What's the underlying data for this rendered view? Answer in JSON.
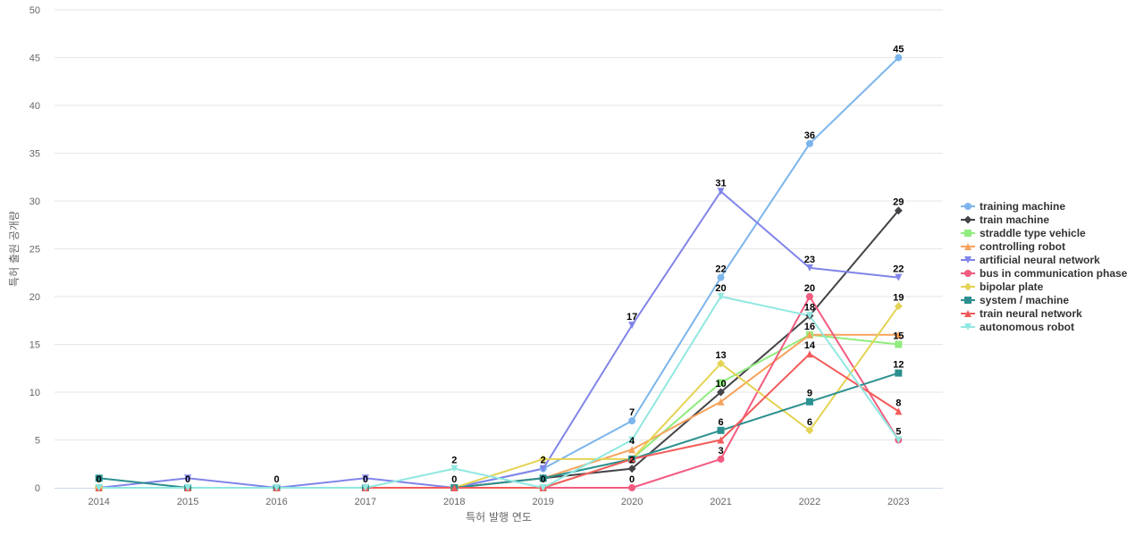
{
  "chart_data": {
    "type": "line",
    "title": "",
    "xlabel": "특허 발행 연도",
    "ylabel": "특허 출원 공개량",
    "ylim": [
      0,
      50
    ],
    "yticks": [
      0,
      5,
      10,
      15,
      20,
      25,
      30,
      35,
      40,
      45,
      50
    ],
    "categories": [
      "2014",
      "2015",
      "2016",
      "2017",
      "2018",
      "2019",
      "2020",
      "2021",
      "2022",
      "2023"
    ],
    "grid": true,
    "legend_position": "right",
    "series": [
      {
        "name": "training machine",
        "color": "#7cb5ec",
        "marker": "circle",
        "values": [
          0,
          0,
          0,
          0,
          0,
          2,
          7,
          22,
          36,
          45
        ]
      },
      {
        "name": "train machine",
        "color": "#434348",
        "marker": "diamond",
        "values": [
          0,
          0,
          0,
          0,
          0,
          1,
          2,
          10,
          18,
          29
        ]
      },
      {
        "name": "straddle type vehicle",
        "color": "#90ed7d",
        "marker": "square",
        "values": [
          0,
          0,
          0,
          0,
          0,
          0,
          3,
          11,
          16,
          15
        ]
      },
      {
        "name": "controlling robot",
        "color": "#f7a35c",
        "marker": "triangle",
        "values": [
          0,
          0,
          0,
          0,
          0,
          1,
          4,
          9,
          16,
          16
        ]
      },
      {
        "name": "artificial neural network",
        "color": "#8085e9",
        "marker": "triangle-down",
        "values": [
          0,
          1,
          0,
          1,
          0,
          2,
          17,
          31,
          23,
          22
        ]
      },
      {
        "name": "bus in communication phase",
        "color": "#f15c80",
        "marker": "circle",
        "values": [
          0,
          0,
          0,
          0,
          0,
          0,
          0,
          3,
          20,
          5
        ]
      },
      {
        "name": "bipolar plate",
        "color": "#e4d354",
        "marker": "diamond",
        "values": [
          0,
          0,
          0,
          0,
          0,
          3,
          3,
          13,
          6,
          19
        ]
      },
      {
        "name": "system / machine",
        "color": "#2b908f",
        "marker": "square",
        "values": [
          1,
          0,
          0,
          0,
          0,
          1,
          3,
          6,
          9,
          12
        ]
      },
      {
        "name": "train neural network",
        "color": "#f45b5b",
        "marker": "triangle",
        "values": [
          0,
          0,
          0,
          0,
          0,
          0,
          3,
          5,
          14,
          8
        ]
      },
      {
        "name": "autonomous robot",
        "color": "#91e8e1",
        "marker": "triangle-down",
        "values": [
          0,
          0,
          0,
          0,
          2,
          0,
          5,
          20,
          18,
          5
        ]
      }
    ],
    "data_labels": [
      {
        "category": "2014",
        "value": 0,
        "text": "0"
      },
      {
        "category": "2015",
        "value": 0,
        "text": "0"
      },
      {
        "category": "2016",
        "value": 0,
        "text": "0"
      },
      {
        "category": "2017",
        "value": 0,
        "text": "0"
      },
      {
        "category": "2018",
        "value": 2,
        "text": "2"
      },
      {
        "category": "2018",
        "value": 0,
        "text": "0"
      },
      {
        "category": "2019",
        "value": 2,
        "text": "2"
      },
      {
        "category": "2019",
        "value": 0,
        "text": "0"
      },
      {
        "category": "2020",
        "value": 17,
        "text": "17"
      },
      {
        "category": "2020",
        "value": 7,
        "text": "7"
      },
      {
        "category": "2020",
        "value": 4,
        "text": "4"
      },
      {
        "category": "2020",
        "value": 2,
        "text": "2"
      },
      {
        "category": "2020",
        "value": 0,
        "text": "0"
      },
      {
        "category": "2021",
        "value": 31,
        "text": "31"
      },
      {
        "category": "2021",
        "value": 22,
        "text": "22"
      },
      {
        "category": "2021",
        "value": 20,
        "text": "20"
      },
      {
        "category": "2021",
        "value": 13,
        "text": "13"
      },
      {
        "category": "2021",
        "value": 10,
        "text": "10"
      },
      {
        "category": "2021",
        "value": 6,
        "text": "6"
      },
      {
        "category": "2021",
        "value": 3,
        "text": "3"
      },
      {
        "category": "2022",
        "value": 36,
        "text": "36"
      },
      {
        "category": "2022",
        "value": 23,
        "text": "23"
      },
      {
        "category": "2022",
        "value": 20,
        "text": "20"
      },
      {
        "category": "2022",
        "value": 18,
        "text": "18"
      },
      {
        "category": "2022",
        "value": 16,
        "text": "16"
      },
      {
        "category": "2022",
        "value": 14,
        "text": "14"
      },
      {
        "category": "2022",
        "value": 9,
        "text": "9"
      },
      {
        "category": "2022",
        "value": 6,
        "text": "6"
      },
      {
        "category": "2023",
        "value": 45,
        "text": "45"
      },
      {
        "category": "2023",
        "value": 29,
        "text": "29"
      },
      {
        "category": "2023",
        "value": 22,
        "text": "22"
      },
      {
        "category": "2023",
        "value": 19,
        "text": "19"
      },
      {
        "category": "2023",
        "value": 15,
        "text": "15"
      },
      {
        "category": "2023",
        "value": 12,
        "text": "12"
      },
      {
        "category": "2023",
        "value": 8,
        "text": "8"
      },
      {
        "category": "2023",
        "value": 5,
        "text": "5"
      }
    ]
  }
}
